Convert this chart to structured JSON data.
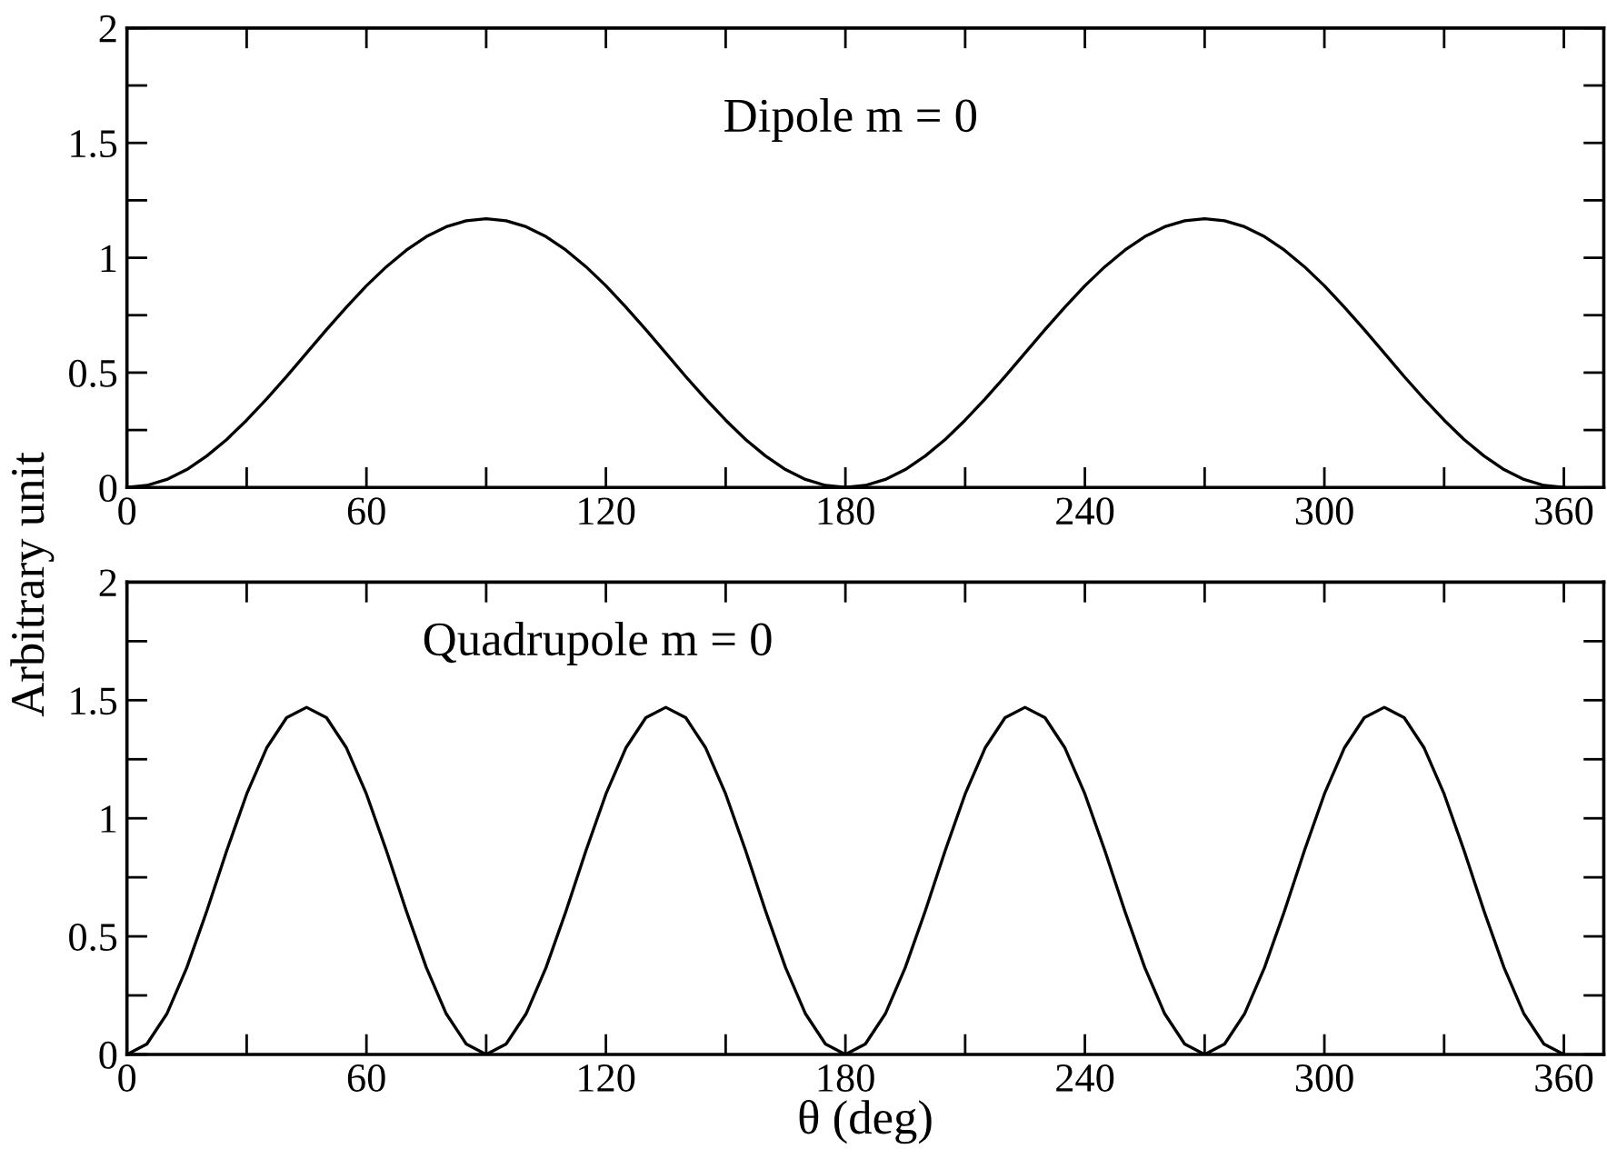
{
  "chart_data": [
    {
      "type": "line",
      "ylabel": "Arbitrary unit",
      "annotations": [
        "Dipole m = 0"
      ],
      "x": [
        0,
        5,
        10,
        15,
        20,
        25,
        30,
        35,
        40,
        45,
        50,
        55,
        60,
        65,
        70,
        75,
        80,
        85,
        90,
        95,
        100,
        105,
        110,
        115,
        120,
        125,
        130,
        135,
        140,
        145,
        150,
        155,
        160,
        165,
        170,
        175,
        180,
        185,
        190,
        195,
        200,
        205,
        210,
        215,
        220,
        225,
        230,
        235,
        240,
        245,
        250,
        255,
        260,
        265,
        270,
        275,
        280,
        285,
        290,
        295,
        300,
        305,
        310,
        315,
        320,
        325,
        330,
        335,
        340,
        345,
        350,
        355,
        360
      ],
      "series": [
        {
          "color": "#000000",
          "values": [
            0,
            0.009,
            0.035,
            0.078,
            0.137,
            0.209,
            0.293,
            0.385,
            0.483,
            0.585,
            0.687,
            0.785,
            0.878,
            0.961,
            1.033,
            1.092,
            1.135,
            1.161,
            1.17,
            1.161,
            1.135,
            1.092,
            1.033,
            0.961,
            0.878,
            0.785,
            0.687,
            0.585,
            0.483,
            0.385,
            0.293,
            0.209,
            0.137,
            0.078,
            0.035,
            0.009,
            0,
            0.009,
            0.035,
            0.078,
            0.137,
            0.209,
            0.293,
            0.385,
            0.483,
            0.585,
            0.687,
            0.785,
            0.878,
            0.961,
            1.033,
            1.092,
            1.135,
            1.161,
            1.17,
            1.161,
            1.135,
            1.092,
            1.033,
            0.961,
            0.878,
            0.785,
            0.687,
            0.585,
            0.483,
            0.385,
            0.293,
            0.209,
            0.137,
            0.078,
            0.035,
            0.009,
            0
          ]
        }
      ],
      "xlim": [
        0,
        370
      ],
      "ylim": [
        0,
        2
      ],
      "xticks": [
        0,
        {
          "value": 30,
          "label": null
        },
        60,
        {
          "value": 90,
          "label": null
        },
        120,
        {
          "value": 150,
          "label": null
        },
        180,
        {
          "value": 210,
          "label": null
        },
        240,
        {
          "value": 270,
          "label": null
        },
        300,
        {
          "value": 330,
          "label": null
        },
        360
      ],
      "yticks": [
        0,
        {
          "value": 0.25,
          "label": null
        },
        0.5,
        {
          "value": 0.75,
          "label": null
        },
        1,
        {
          "value": 1.25,
          "label": null
        },
        1.5,
        {
          "value": 1.75,
          "label": null
        },
        2
      ],
      "grid": false,
      "legend": false,
      "line_style": "solid"
    },
    {
      "type": "line",
      "xlabel": "θ (deg)",
      "annotations": [
        "Quadrupole m = 0"
      ],
      "x": [
        0,
        5,
        10,
        15,
        20,
        25,
        30,
        35,
        40,
        45,
        50,
        55,
        60,
        65,
        70,
        75,
        80,
        85,
        90,
        95,
        100,
        105,
        110,
        115,
        120,
        125,
        130,
        135,
        140,
        145,
        150,
        155,
        160,
        165,
        170,
        175,
        180,
        185,
        190,
        195,
        200,
        205,
        210,
        215,
        220,
        225,
        230,
        235,
        240,
        245,
        250,
        255,
        260,
        265,
        270,
        275,
        280,
        285,
        290,
        295,
        300,
        305,
        310,
        315,
        320,
        325,
        330,
        335,
        340,
        345,
        350,
        355,
        360
      ],
      "series": [
        {
          "color": "#000000",
          "values": [
            0,
            0.044,
            0.172,
            0.368,
            0.607,
            0.863,
            1.103,
            1.298,
            1.426,
            1.47,
            1.426,
            1.298,
            1.103,
            0.863,
            0.607,
            0.368,
            0.172,
            0.044,
            0,
            0.044,
            0.172,
            0.368,
            0.607,
            0.863,
            1.103,
            1.298,
            1.426,
            1.47,
            1.426,
            1.298,
            1.103,
            0.863,
            0.607,
            0.368,
            0.172,
            0.044,
            0,
            0.044,
            0.172,
            0.368,
            0.607,
            0.863,
            1.103,
            1.298,
            1.426,
            1.47,
            1.426,
            1.298,
            1.103,
            0.863,
            0.607,
            0.368,
            0.172,
            0.044,
            0,
            0.044,
            0.172,
            0.368,
            0.607,
            0.863,
            1.103,
            1.298,
            1.426,
            1.47,
            1.426,
            1.298,
            1.103,
            0.863,
            0.607,
            0.368,
            0.172,
            0.044,
            0
          ]
        }
      ],
      "xlim": [
        0,
        370
      ],
      "ylim": [
        0,
        2
      ],
      "xticks": [
        0,
        {
          "value": 30,
          "label": null
        },
        60,
        {
          "value": 90,
          "label": null
        },
        120,
        {
          "value": 150,
          "label": null
        },
        180,
        {
          "value": 210,
          "label": null
        },
        240,
        {
          "value": 270,
          "label": null
        },
        300,
        {
          "value": 330,
          "label": null
        },
        360
      ],
      "yticks": [
        0,
        {
          "value": 0.25,
          "label": null
        },
        0.5,
        {
          "value": 0.75,
          "label": null
        },
        1,
        {
          "value": 1.25,
          "label": null
        },
        1.5,
        {
          "value": 1.75,
          "label": null
        },
        2
      ],
      "grid": false,
      "legend": false,
      "line_style": "solid"
    }
  ]
}
